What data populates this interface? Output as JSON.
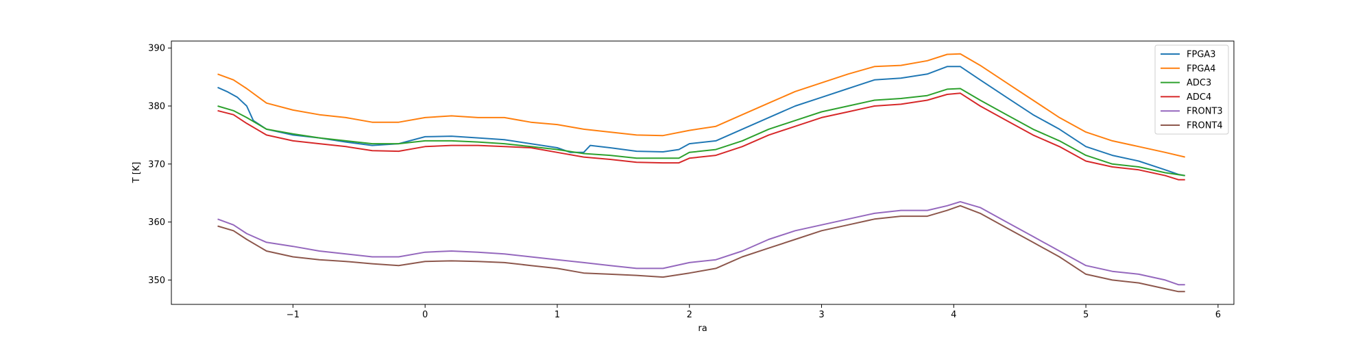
{
  "chart_data": {
    "type": "line",
    "xlabel": "ra",
    "ylabel": "T [K]",
    "xlim": [
      -1.92,
      6.12
    ],
    "ylim": [
      345.8,
      391.2
    ],
    "xticks": [
      -1,
      0,
      1,
      2,
      3,
      4,
      5,
      6
    ],
    "xtick_labels": [
      "−1",
      "0",
      "1",
      "2",
      "3",
      "4",
      "5",
      "6"
    ],
    "yticks": [
      350,
      360,
      370,
      380,
      390
    ],
    "ytick_labels": [
      "350",
      "360",
      "370",
      "380",
      "390"
    ],
    "grid": false,
    "legend_position": "top-right",
    "series": [
      {
        "name": "FPGA3",
        "color": "#1f77b4",
        "x": [
          -1.57,
          -1.5,
          -1.42,
          -1.35,
          -1.3,
          -1.2,
          -1.1,
          -1.0,
          -0.8,
          -0.6,
          -0.4,
          -0.2,
          0.0,
          0.2,
          0.4,
          0.6,
          0.8,
          1.0,
          1.1,
          1.2,
          1.25,
          1.4,
          1.6,
          1.8,
          1.92,
          2.0,
          2.2,
          2.4,
          2.6,
          2.8,
          3.0,
          3.2,
          3.4,
          3.6,
          3.8,
          3.95,
          4.05,
          4.2,
          4.4,
          4.6,
          4.8,
          5.0,
          5.2,
          5.4,
          5.6,
          5.7,
          5.75
        ],
        "y": [
          383.2,
          382.5,
          381.5,
          380.0,
          377.5,
          376.0,
          375.5,
          375.0,
          374.5,
          373.8,
          373.2,
          373.5,
          374.7,
          374.8,
          374.5,
          374.2,
          373.5,
          372.8,
          372.0,
          372.0,
          373.2,
          372.8,
          372.2,
          372.1,
          372.5,
          373.5,
          374.0,
          376.0,
          378.0,
          380.0,
          381.5,
          383.0,
          384.5,
          384.8,
          385.5,
          386.8,
          386.8,
          384.5,
          381.5,
          378.5,
          376.0,
          373.0,
          371.5,
          370.5,
          369.0,
          368.2,
          368.0
        ]
      },
      {
        "name": "FPGA4",
        "color": "#ff7f0e",
        "x": [
          -1.57,
          -1.45,
          -1.35,
          -1.2,
          -1.0,
          -0.8,
          -0.6,
          -0.4,
          -0.2,
          0.0,
          0.2,
          0.4,
          0.6,
          0.8,
          1.0,
          1.2,
          1.4,
          1.6,
          1.8,
          2.0,
          2.2,
          2.4,
          2.6,
          2.8,
          3.0,
          3.2,
          3.4,
          3.6,
          3.8,
          3.95,
          4.05,
          4.2,
          4.4,
          4.6,
          4.8,
          5.0,
          5.2,
          5.4,
          5.6,
          5.75
        ],
        "y": [
          385.5,
          384.5,
          383.0,
          380.5,
          379.3,
          378.5,
          378.0,
          377.2,
          377.2,
          378.0,
          378.3,
          378.0,
          378.0,
          377.2,
          376.8,
          376.0,
          375.5,
          375.0,
          374.9,
          375.8,
          376.5,
          378.5,
          380.5,
          382.5,
          384.0,
          385.5,
          386.8,
          387.0,
          387.8,
          388.9,
          389.0,
          387.0,
          384.0,
          381.0,
          378.0,
          375.5,
          374.0,
          373.0,
          372.0,
          371.2
        ]
      },
      {
        "name": "ADC3",
        "color": "#2ca02c",
        "x": [
          -1.57,
          -1.45,
          -1.35,
          -1.2,
          -1.0,
          -0.8,
          -0.6,
          -0.4,
          -0.2,
          0.0,
          0.2,
          0.4,
          0.6,
          0.8,
          1.0,
          1.2,
          1.4,
          1.6,
          1.8,
          1.92,
          2.0,
          2.2,
          2.4,
          2.6,
          2.8,
          3.0,
          3.2,
          3.4,
          3.6,
          3.8,
          3.95,
          4.05,
          4.2,
          4.4,
          4.6,
          4.8,
          5.0,
          5.2,
          5.4,
          5.6,
          5.75
        ],
        "y": [
          380.0,
          379.2,
          378.0,
          376.0,
          375.2,
          374.5,
          374.0,
          373.5,
          373.5,
          374.0,
          374.0,
          373.8,
          373.5,
          373.0,
          372.5,
          371.8,
          371.5,
          371.0,
          371.0,
          371.0,
          372.0,
          372.5,
          374.0,
          376.0,
          377.5,
          379.0,
          380.0,
          381.0,
          381.3,
          381.8,
          382.9,
          383.0,
          381.0,
          378.5,
          376.0,
          374.0,
          371.5,
          370.0,
          369.5,
          368.5,
          368.0
        ]
      },
      {
        "name": "ADC4",
        "color": "#d62728",
        "x": [
          -1.57,
          -1.45,
          -1.35,
          -1.2,
          -1.0,
          -0.8,
          -0.6,
          -0.4,
          -0.2,
          0.0,
          0.2,
          0.4,
          0.6,
          0.8,
          1.0,
          1.2,
          1.4,
          1.6,
          1.8,
          1.92,
          2.0,
          2.2,
          2.4,
          2.6,
          2.8,
          3.0,
          3.2,
          3.4,
          3.6,
          3.8,
          3.95,
          4.05,
          4.2,
          4.4,
          4.6,
          4.8,
          5.0,
          5.2,
          5.4,
          5.6,
          5.7,
          5.75
        ],
        "y": [
          379.2,
          378.5,
          377.0,
          375.0,
          374.0,
          373.5,
          373.0,
          372.3,
          372.2,
          373.0,
          373.2,
          373.2,
          373.0,
          372.8,
          372.0,
          371.2,
          370.8,
          370.3,
          370.2,
          370.2,
          371.0,
          371.5,
          373.0,
          375.0,
          376.5,
          378.0,
          379.0,
          380.0,
          380.3,
          381.0,
          382.0,
          382.2,
          380.0,
          377.5,
          375.0,
          373.0,
          370.5,
          369.5,
          369.0,
          368.0,
          367.3,
          367.3
        ]
      },
      {
        "name": "FRONT3",
        "color": "#9467bd",
        "x": [
          -1.57,
          -1.45,
          -1.35,
          -1.2,
          -1.0,
          -0.8,
          -0.6,
          -0.4,
          -0.2,
          0.0,
          0.2,
          0.4,
          0.6,
          0.8,
          1.0,
          1.2,
          1.4,
          1.6,
          1.8,
          2.0,
          2.2,
          2.4,
          2.6,
          2.8,
          3.0,
          3.2,
          3.4,
          3.6,
          3.8,
          3.95,
          4.05,
          4.2,
          4.4,
          4.6,
          4.8,
          5.0,
          5.2,
          5.4,
          5.6,
          5.7,
          5.75
        ],
        "y": [
          360.5,
          359.5,
          358.0,
          356.5,
          355.8,
          355.0,
          354.5,
          354.0,
          354.0,
          354.8,
          355.0,
          354.8,
          354.5,
          354.0,
          353.5,
          353.0,
          352.5,
          352.0,
          352.0,
          353.0,
          353.5,
          355.0,
          357.0,
          358.5,
          359.5,
          360.5,
          361.5,
          362.0,
          362.0,
          362.8,
          363.5,
          362.5,
          360.0,
          357.5,
          355.0,
          352.5,
          351.5,
          351.0,
          350.0,
          349.2,
          349.2
        ]
      },
      {
        "name": "FRONT4",
        "color": "#8c564b",
        "x": [
          -1.57,
          -1.45,
          -1.35,
          -1.2,
          -1.0,
          -0.8,
          -0.6,
          -0.4,
          -0.2,
          0.0,
          0.2,
          0.4,
          0.6,
          0.8,
          1.0,
          1.2,
          1.4,
          1.6,
          1.8,
          2.0,
          2.2,
          2.4,
          2.6,
          2.8,
          3.0,
          3.2,
          3.4,
          3.6,
          3.8,
          3.95,
          4.05,
          4.2,
          4.4,
          4.6,
          4.8,
          5.0,
          5.2,
          5.4,
          5.6,
          5.7,
          5.75
        ],
        "y": [
          359.3,
          358.5,
          357.0,
          355.0,
          354.0,
          353.5,
          353.2,
          352.8,
          352.5,
          353.2,
          353.3,
          353.2,
          353.0,
          352.5,
          352.0,
          351.2,
          351.0,
          350.8,
          350.5,
          351.2,
          352.0,
          354.0,
          355.5,
          357.0,
          358.5,
          359.5,
          360.5,
          361.0,
          361.0,
          362.0,
          362.8,
          361.5,
          359.0,
          356.5,
          354.0,
          351.0,
          350.0,
          349.5,
          348.5,
          348.0,
          348.0
        ]
      }
    ]
  }
}
